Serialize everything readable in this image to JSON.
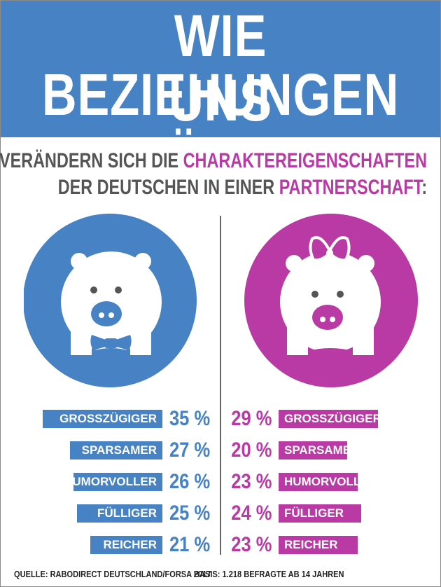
{
  "header": {
    "title_line1": "WIE BEZIEHUNGEN",
    "title_line2": "UNS VERÄNDERN"
  },
  "subtitle": {
    "line1_plain": "SO VERÄNDERN SICH DIE ",
    "line1_accent": "CHARAKTEREIGENSCHAFTEN",
    "line2_plain": "DER DEUTSCHEN IN EINER ",
    "line2_accent": "PARTNERSCHAFT",
    "line2_end": ":"
  },
  "icons": {
    "male": "pig-with-bow-tie-icon",
    "female": "pig-with-hair-bow-icon"
  },
  "colors": {
    "male": "#4682c4",
    "female": "#b93aa5",
    "text_gray": "#555555"
  },
  "chart_data": {
    "type": "bar",
    "title": "So verändern sich die Charaktereigenschaften der Deutschen in einer Partnerschaft",
    "categories": [
      "GROSSZÜGIGER",
      "SPARSAMER",
      "HUMORVOLLER",
      "FÜLLIGER",
      "REICHER"
    ],
    "unit": "%",
    "series": [
      {
        "name": "Männer",
        "values": [
          35,
          27,
          26,
          25,
          21
        ]
      },
      {
        "name": "Frauen",
        "values": [
          29,
          20,
          23,
          24,
          23
        ]
      }
    ],
    "ylim": [
      0,
      40
    ]
  },
  "footer": {
    "source": "QUELLE: RABODIRECT DEUTSCHLAND/FORSA 2017",
    "basis": "BASIS: 1.218 BEFRAGTE AB 14 JAHREN"
  }
}
